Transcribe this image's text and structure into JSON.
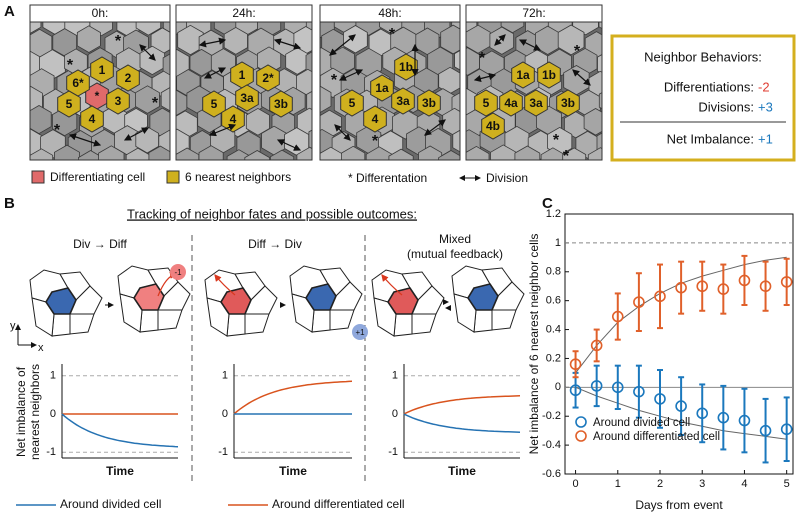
{
  "panel_labels": [
    "A",
    "B",
    "C"
  ],
  "panel_a": {
    "frames": [
      {
        "title": "0h:",
        "cells": [
          {
            "label": "*",
            "role": "differentiating"
          },
          {
            "label": "1",
            "role": "neighbor"
          },
          {
            "label": "2",
            "role": "neighbor"
          },
          {
            "label": "3",
            "role": "neighbor"
          },
          {
            "label": "4",
            "role": "neighbor"
          },
          {
            "label": "5",
            "role": "neighbor"
          },
          {
            "label": "6*",
            "role": "neighbor"
          }
        ],
        "stars": [
          "*",
          "*",
          "*",
          "*"
        ]
      },
      {
        "title": "24h:",
        "cells": [
          {
            "label": "1",
            "role": "neighbor"
          },
          {
            "label": "2*",
            "role": "neighbor"
          },
          {
            "label": "3a",
            "role": "neighbor"
          },
          {
            "label": "3b",
            "role": "neighbor"
          },
          {
            "label": "5",
            "role": "neighbor"
          },
          {
            "label": "4",
            "role": "neighbor"
          }
        ],
        "stars": []
      },
      {
        "title": "48h:",
        "cells": [
          {
            "label": "1b",
            "role": "neighbor"
          },
          {
            "label": "1a",
            "role": "neighbor"
          },
          {
            "label": "5",
            "role": "neighbor"
          },
          {
            "label": "3a",
            "role": "neighbor"
          },
          {
            "label": "3b",
            "role": "neighbor"
          },
          {
            "label": "4",
            "role": "neighbor"
          }
        ],
        "stars": [
          "*",
          "*",
          "*"
        ]
      },
      {
        "title": "72h:",
        "cells": [
          {
            "label": "1a",
            "role": "neighbor"
          },
          {
            "label": "1b",
            "role": "neighbor"
          },
          {
            "label": "5",
            "role": "neighbor"
          },
          {
            "label": "4a",
            "role": "neighbor"
          },
          {
            "label": "3a",
            "role": "neighbor"
          },
          {
            "label": "3b",
            "role": "neighbor"
          },
          {
            "label": "4b",
            "role": "neighbor"
          }
        ],
        "stars": [
          "*",
          "*",
          "*",
          "*"
        ]
      }
    ],
    "legend": {
      "differentiating": "Differentiating cell",
      "neighbors": "6 nearest neighbors",
      "star": "* Differentation",
      "division": "Division"
    },
    "summary": {
      "title": "Neighbor Behaviors:",
      "differentiations_label": "Differentiations:",
      "differentiations_value": "-2",
      "divisions_label": "Divisions:",
      "divisions_value": "+3",
      "net_label": "Net Imbalance:",
      "net_value": "+1"
    }
  },
  "panel_b": {
    "title": "Tracking of neighbor fates and possible outcomes:",
    "columns": [
      {
        "title": [
          "Div → Diff"
        ],
        "badge": "-1",
        "divided_limit": -0.9,
        "differentiated_limit": 0
      },
      {
        "title": [
          "Diff → Div"
        ],
        "badge": "+1",
        "divided_limit": 0,
        "differentiated_limit": 0.9
      },
      {
        "title": [
          "Mixed",
          "(mutual feedback)"
        ],
        "badge": null,
        "divided_limit": -0.5,
        "differentiated_limit": 0.5
      }
    ],
    "axis_labels": [
      "y",
      "x"
    ],
    "y_label": [
      "Net imbalance of",
      "nearest neighbors"
    ],
    "x_label": "Time",
    "ylim": [
      -1.15,
      1.15
    ],
    "yticks": [
      1,
      0,
      -1
    ],
    "legend": {
      "divided": "Around divided cell",
      "differentiated": "Around differentiated cell"
    },
    "colors": {
      "divided": "#2673b3",
      "differentiated": "#d9541e"
    }
  },
  "chart_data": {
    "type": "scatter",
    "x_label": "Days from event",
    "y_label": "Net imbalance of 6 nearest neighbor cells",
    "x": [
      0,
      0.5,
      1,
      1.5,
      2,
      2.5,
      3,
      3.5,
      4,
      4.5,
      5
    ],
    "series": [
      {
        "name": "Around divided cell",
        "color": "#1b78bd",
        "values": [
          -0.02,
          0.01,
          0.0,
          -0.03,
          -0.08,
          -0.13,
          -0.18,
          -0.21,
          -0.23,
          -0.3,
          -0.29
        ],
        "errors": [
          0.12,
          0.14,
          0.15,
          0.18,
          0.2,
          0.2,
          0.2,
          0.22,
          0.22,
          0.22,
          0.22
        ]
      },
      {
        "name": "Around differentiated cell",
        "color": "#e0602a",
        "values": [
          0.16,
          0.29,
          0.49,
          0.59,
          0.63,
          0.69,
          0.7,
          0.68,
          0.74,
          0.7,
          0.73
        ],
        "errors": [
          0.09,
          0.11,
          0.16,
          0.2,
          0.22,
          0.18,
          0.17,
          0.17,
          0.17,
          0.17,
          0.16
        ]
      }
    ],
    "fits": [
      {
        "color": "#666666",
        "x": [
          0,
          0.5,
          1,
          1.5,
          2,
          2.5,
          3,
          3.5,
          4,
          4.5,
          5
        ],
        "values": [
          0.1,
          0.29,
          0.45,
          0.56,
          0.65,
          0.72,
          0.77,
          0.81,
          0.85,
          0.88,
          0.9
        ]
      },
      {
        "color": "#666666",
        "x": [
          0,
          0.5,
          1,
          1.5,
          2,
          2.5,
          3,
          3.5,
          4,
          4.5,
          5
        ],
        "values": [
          0,
          -0.06,
          -0.11,
          -0.16,
          -0.2,
          -0.24,
          -0.27,
          -0.3,
          -0.32,
          -0.34,
          -0.36
        ]
      }
    ],
    "reference_lines": [
      {
        "value": 1,
        "style": "dashed"
      },
      {
        "value": 0,
        "style": "solid"
      }
    ],
    "xlim": [
      -0.25,
      5.15
    ],
    "ylim": [
      -0.6,
      1.2
    ],
    "xticks": [
      0,
      1,
      2,
      3,
      4,
      5
    ],
    "yticks": [
      -0.6,
      -0.4,
      -0.2,
      0,
      0.2,
      0.4,
      0.6,
      0.8,
      1,
      1.2
    ],
    "legend": "lower left"
  }
}
